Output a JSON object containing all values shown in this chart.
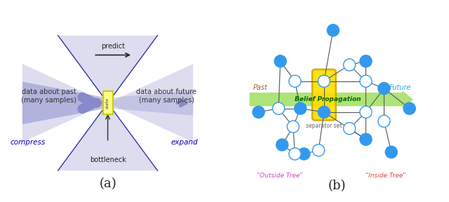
{
  "fig_width": 6.4,
  "fig_height": 2.88,
  "dpi": 100,
  "background": "#ffffff",
  "label_a": "(a)",
  "label_b": "(b)",
  "panel_a": {
    "predict_label": "predict",
    "compress_label": "compress",
    "expand_label": "expand",
    "past_label": "data about past\n(many samples)",
    "future_label": "data about future\n(many samples)",
    "bottleneck_label": "bottleneck",
    "compress_color": "#0000bb",
    "expand_color": "#0000bb",
    "box_color": "#ffff88",
    "box_border": "#cccc00",
    "diag_line_color": "#3333aa",
    "fan_color": "#ddddef",
    "horiz_arrow_color": "#8888cc",
    "text_color": "#333333"
  },
  "panel_b": {
    "green_arrow_color": "#99dd55",
    "past_label": "Past",
    "future_label": "Future",
    "bp_label": "Belief Propagation",
    "separator_label": "separator set",
    "outside_tree_label": "\"Outside Tree\"",
    "inside_tree_label": "\"Inside Tree\"",
    "past_color": "#996633",
    "future_color": "#33aacc",
    "bp_color": "#006600",
    "outside_color": "#cc44cc",
    "inside_color": "#dd4444",
    "separator_color": "#666666",
    "node_blue_fill": "#3399ee",
    "node_white_fill": "#ffffff",
    "node_border": "#3399ee",
    "yellow_box_color": "#ffdd00",
    "edge_color": "#555555"
  }
}
